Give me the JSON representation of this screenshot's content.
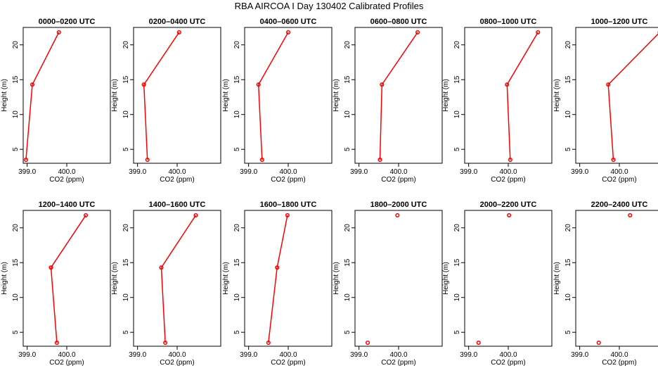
{
  "title": "RBA AIRCOA I  Day 130402  Calibrated Profiles",
  "colors": {
    "series": "#ff0000",
    "axis": "#000000",
    "background": "#ffffff"
  },
  "chart_data": [
    {
      "type": "line",
      "title": "0000–0200 UTC",
      "xlabel": "CO2 (ppm)",
      "ylabel": "Height (m)",
      "xlim": [
        398.9,
        401.1
      ],
      "ylim": [
        3,
        22.5
      ],
      "xticks": [
        399.0,
        400.0
      ],
      "xtick_labels": [
        "399.0",
        "400.0"
      ],
      "yticks": [
        5,
        10,
        15,
        20
      ],
      "ytick_labels": [
        "5",
        "10",
        "15",
        "20"
      ],
      "x": [
        398.97,
        399.13,
        399.8
      ],
      "y": [
        3.5,
        14.3,
        21.8
      ]
    },
    {
      "type": "line",
      "title": "0200–0400 UTC",
      "xlabel": "CO2 (ppm)",
      "ylabel": "Height (m)",
      "xlim": [
        398.9,
        401.1
      ],
      "ylim": [
        3,
        22.5
      ],
      "xticks": [
        399.0,
        400.0
      ],
      "xtick_labels": [
        "399.0",
        "400.0"
      ],
      "yticks": [
        5,
        10,
        15,
        20
      ],
      "ytick_labels": [
        "5",
        "10",
        "15",
        "20"
      ],
      "x": [
        399.25,
        399.16,
        400.05
      ],
      "y": [
        3.5,
        14.3,
        21.8
      ]
    },
    {
      "type": "line",
      "title": "0400–0600 UTC",
      "xlabel": "CO2 (ppm)",
      "ylabel": "Height (m)",
      "xlim": [
        398.9,
        401.1
      ],
      "ylim": [
        3,
        22.5
      ],
      "xticks": [
        399.0,
        400.0
      ],
      "xtick_labels": [
        "399.0",
        "400.0"
      ],
      "yticks": [
        5,
        10,
        15,
        20
      ],
      "ytick_labels": [
        "5",
        "10",
        "15",
        "20"
      ],
      "x": [
        399.34,
        399.25,
        400.0
      ],
      "y": [
        3.5,
        14.3,
        21.8
      ]
    },
    {
      "type": "line",
      "title": "0600–0800 UTC",
      "xlabel": "CO2 (ppm)",
      "ylabel": "Height (m)",
      "xlim": [
        398.9,
        401.1
      ],
      "ylim": [
        3,
        22.5
      ],
      "xticks": [
        399.0,
        400.0
      ],
      "xtick_labels": [
        "399.0",
        "400.0"
      ],
      "yticks": [
        5,
        10,
        15,
        20
      ],
      "ytick_labels": [
        "5",
        "10",
        "15",
        "20"
      ],
      "x": [
        399.53,
        399.58,
        400.48
      ],
      "y": [
        3.5,
        14.3,
        21.8
      ]
    },
    {
      "type": "line",
      "title": "0800–1000 UTC",
      "xlabel": "CO2 (ppm)",
      "ylabel": "Height (m)",
      "xlim": [
        398.9,
        401.1
      ],
      "ylim": [
        3,
        22.5
      ],
      "xticks": [
        399.0,
        400.0
      ],
      "xtick_labels": [
        "399.0",
        "400.0"
      ],
      "yticks": [
        5,
        10,
        15,
        20
      ],
      "ytick_labels": [
        "5",
        "10",
        "15",
        "20"
      ],
      "x": [
        400.05,
        399.97,
        400.75
      ],
      "y": [
        3.5,
        14.3,
        21.8
      ]
    },
    {
      "type": "line",
      "title": "1000–1200 UTC",
      "xlabel": "CO2 (ppm)",
      "ylabel": "Height (m)",
      "xlim": [
        398.9,
        401.1
      ],
      "ylim": [
        3,
        22.5
      ],
      "xticks": [
        399.0,
        400.0
      ],
      "xtick_labels": [
        "399.0",
        "400.0"
      ],
      "yticks": [
        5,
        10,
        15,
        20
      ],
      "ytick_labels": [
        "5",
        "10",
        "15",
        "20"
      ],
      "x": [
        399.85,
        399.72,
        401.02
      ],
      "y": [
        3.5,
        14.3,
        21.8
      ]
    },
    {
      "type": "line",
      "title": "1200–1400 UTC",
      "xlabel": "CO2 (ppm)",
      "ylabel": "Height (m)",
      "xlim": [
        398.9,
        401.1
      ],
      "ylim": [
        3,
        22.5
      ],
      "xticks": [
        399.0,
        400.0
      ],
      "xtick_labels": [
        "399.0",
        "400.0"
      ],
      "yticks": [
        5,
        10,
        15,
        20
      ],
      "ytick_labels": [
        "5",
        "10",
        "15",
        "20"
      ],
      "x": [
        399.75,
        399.6,
        400.48
      ],
      "y": [
        3.5,
        14.3,
        21.8
      ]
    },
    {
      "type": "line",
      "title": "1400–1600 UTC",
      "xlabel": "CO2 (ppm)",
      "ylabel": "Height (m)",
      "xlim": [
        398.9,
        401.1
      ],
      "ylim": [
        3,
        22.5
      ],
      "xticks": [
        399.0,
        400.0
      ],
      "xtick_labels": [
        "399.0",
        "400.0"
      ],
      "yticks": [
        5,
        10,
        15,
        20
      ],
      "ytick_labels": [
        "5",
        "10",
        "15",
        "20"
      ],
      "x": [
        399.7,
        399.6,
        400.47
      ],
      "y": [
        3.5,
        14.3,
        21.8
      ]
    },
    {
      "type": "line",
      "title": "1600–1800 UTC",
      "xlabel": "CO2 (ppm)",
      "ylabel": "Height (m)",
      "xlim": [
        398.9,
        401.1
      ],
      "ylim": [
        3,
        22.5
      ],
      "xticks": [
        399.0,
        400.0
      ],
      "xtick_labels": [
        "399.0",
        "400.0"
      ],
      "yticks": [
        5,
        10,
        15,
        20
      ],
      "ytick_labels": [
        "5",
        "10",
        "15",
        "20"
      ],
      "x": [
        399.5,
        399.72,
        399.98
      ],
      "y": [
        3.5,
        14.3,
        21.8
      ]
    },
    {
      "type": "scatter",
      "title": "1800–2000 UTC",
      "xlabel": "CO2 (ppm)",
      "ylabel": "Height (m)",
      "xlim": [
        398.9,
        401.1
      ],
      "ylim": [
        3,
        22.5
      ],
      "xticks": [
        399.0,
        400.0
      ],
      "xtick_labels": [
        "399.0",
        "400.0"
      ],
      "yticks": [
        5,
        10,
        15,
        20
      ],
      "ytick_labels": [
        "5",
        "10",
        "15",
        "20"
      ],
      "x": [
        399.22,
        399.97
      ],
      "y": [
        3.5,
        21.8
      ]
    },
    {
      "type": "scatter",
      "title": "2000–2200 UTC",
      "xlabel": "CO2 (ppm)",
      "ylabel": "Height (m)",
      "xlim": [
        398.9,
        401.1
      ],
      "ylim": [
        3,
        22.5
      ],
      "xticks": [
        399.0,
        400.0
      ],
      "xtick_labels": [
        "399.0",
        "400.0"
      ],
      "yticks": [
        5,
        10,
        15,
        20
      ],
      "ytick_labels": [
        "5",
        "10",
        "15",
        "20"
      ],
      "x": [
        399.25,
        400.02
      ],
      "y": [
        3.5,
        21.8
      ]
    },
    {
      "type": "scatter",
      "title": "2200–2400 UTC",
      "xlabel": "CO2 (ppm)",
      "ylabel": "Height (m)",
      "xlim": [
        398.9,
        401.1
      ],
      "ylim": [
        3,
        22.5
      ],
      "xticks": [
        399.0,
        400.0
      ],
      "xtick_labels": [
        "399.0",
        "400.0"
      ],
      "yticks": [
        5,
        10,
        15,
        20
      ],
      "ytick_labels": [
        "5",
        "10",
        "15",
        "20"
      ],
      "x": [
        399.48,
        400.27
      ],
      "y": [
        3.5,
        21.8
      ]
    }
  ]
}
